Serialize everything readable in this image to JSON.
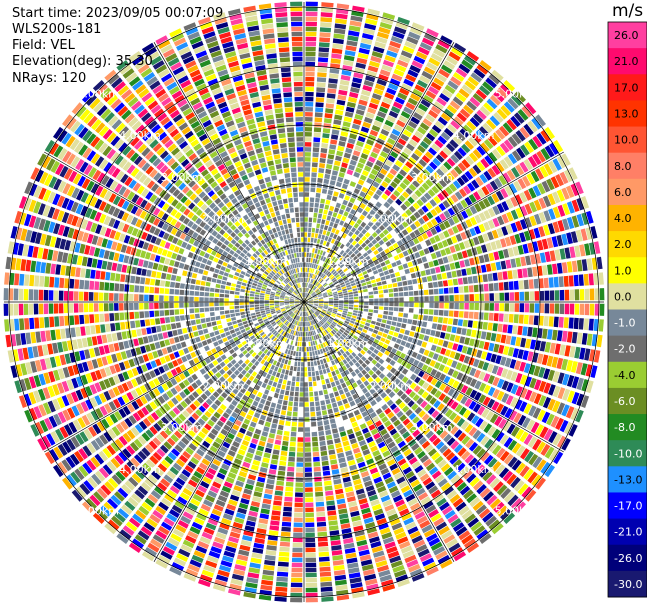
{
  "header": {
    "start_time": "Start time: 2023/09/05 00:07:09",
    "instrument": "WLS200s-181",
    "field": "Field: VEL",
    "elevation": "Elevation(deg): 35.30",
    "nrays": "NRays: 120"
  },
  "colorbar": {
    "unit": "m/s",
    "ticks": [
      "26.0",
      "21.0",
      "17.0",
      "13.0",
      "10.0",
      "8.0",
      "6.0",
      "4.0",
      "2.0",
      "1.0",
      "0.0",
      "-1.0",
      "-2.0",
      "-4.0",
      "-6.0",
      "-8.0",
      "-10.0",
      "-13.0",
      "-17.0",
      "-21.0",
      "-26.0",
      "-30.0"
    ],
    "colors": [
      "#ff3fa0",
      "#ff0a6e",
      "#ff1a1a",
      "#ff3300",
      "#ff5533",
      "#ff7f66",
      "#ff9966",
      "#ffb300",
      "#ffd900",
      "#ffff00",
      "#e0e0a0",
      "#778899",
      "#6e6e6e",
      "#9acd32",
      "#6b8e23",
      "#228b22",
      "#2e8b57",
      "#1e90ff",
      "#0000ff",
      "#0000b0",
      "#00007a",
      "#191970"
    ]
  },
  "ppi": {
    "ring_labels": [
      "1.00km",
      "2.00km",
      "3.00km",
      "4.00km",
      "5.00km"
    ],
    "rays": 120,
    "gates": 60
  }
}
